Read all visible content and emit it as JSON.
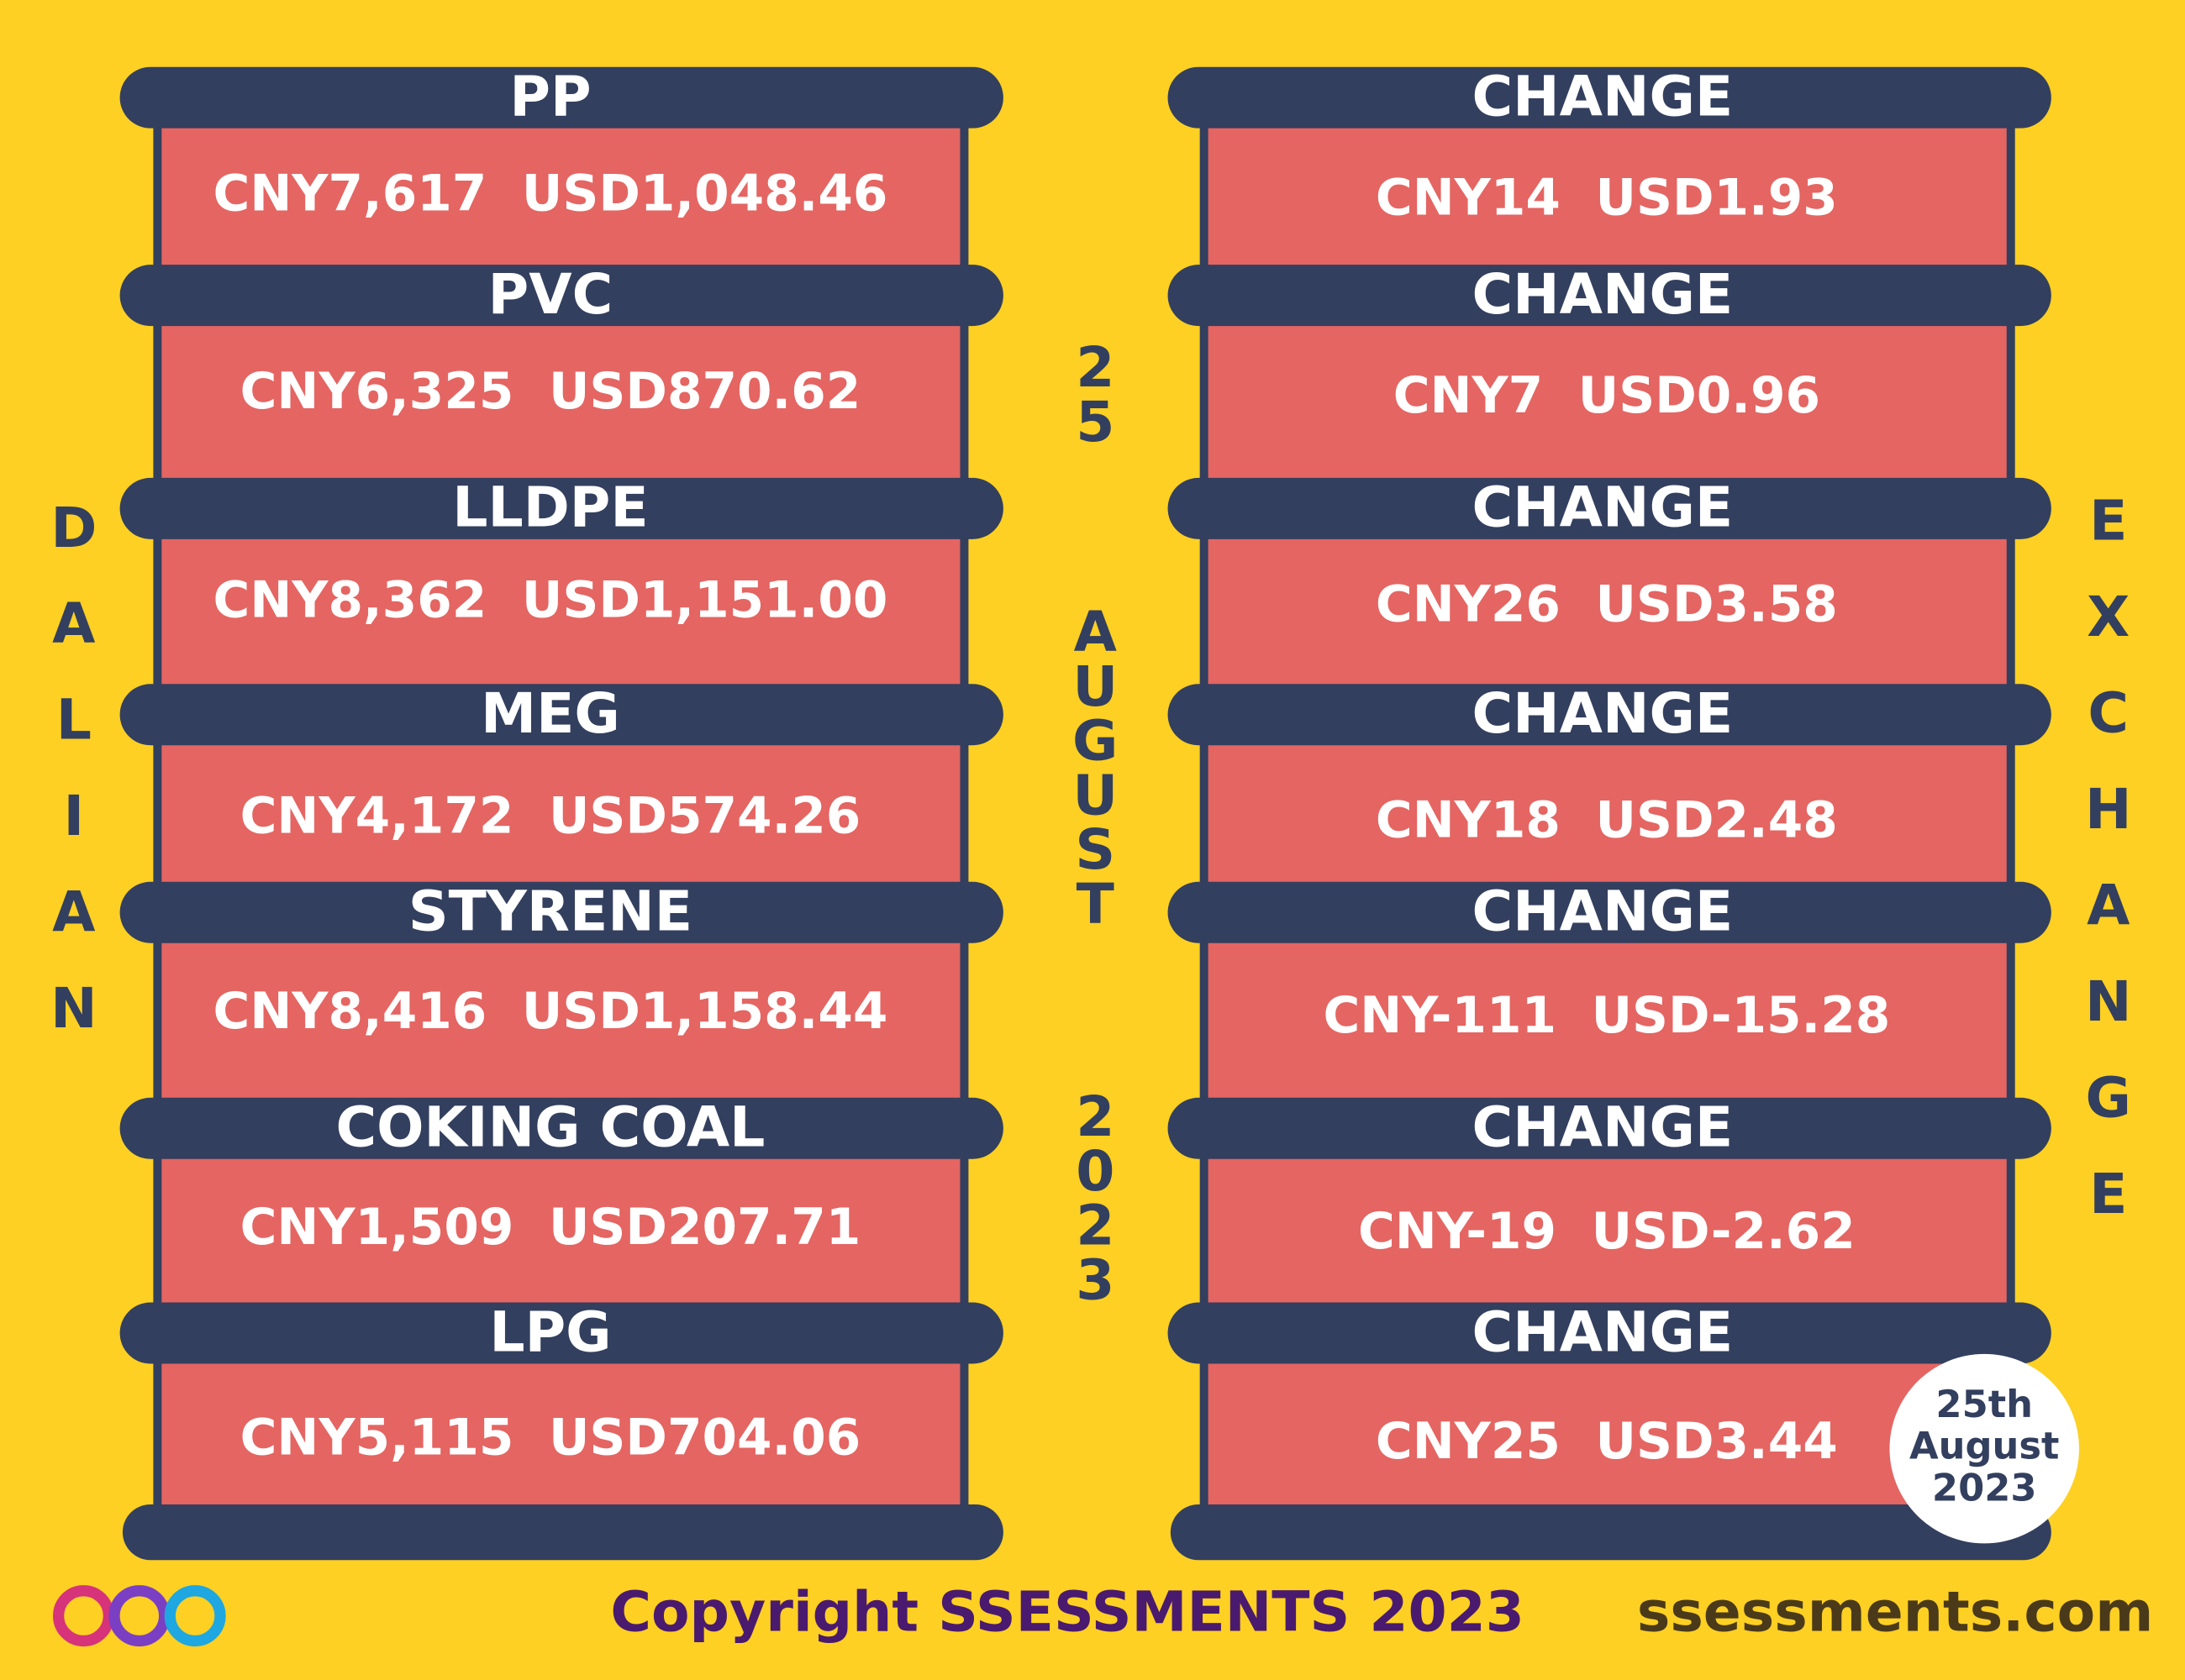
{
  "side_labels": {
    "left": "DALIAN",
    "right": "EXCHANGE"
  },
  "date_center": {
    "day": "25",
    "month": "AUGUST",
    "year": "2023"
  },
  "products": [
    {
      "name": "PP",
      "price": "CNY7,617  USD1,048.46",
      "change_label": "CHANGE",
      "change": "CNY14  USD1.93"
    },
    {
      "name": "PVC",
      "price": "CNY6,325  USD870.62",
      "change_label": "CHANGE",
      "change": "CNY7  USD0.96"
    },
    {
      "name": "LLDPE",
      "price": "CNY8,362  USD1,151.00",
      "change_label": "CHANGE",
      "change": "CNY26  USD3.58"
    },
    {
      "name": "MEG",
      "price": "CNY4,172  USD574.26",
      "change_label": "CHANGE",
      "change": "CNY18  USD2.48"
    },
    {
      "name": "STYRENE",
      "price": "CNY8,416  USD1,158.44",
      "change_label": "CHANGE",
      "change": "CNY-111  USD-15.28"
    },
    {
      "name": "COKING COAL",
      "price": "CNY1,509  USD207.71",
      "change_label": "CHANGE",
      "change": "CNY-19  USD-2.62"
    },
    {
      "name": "LPG",
      "price": "CNY5,115  USD704.06",
      "change_label": "CHANGE",
      "change": "CNY25  USD3.44"
    }
  ],
  "badge": {
    "day": "25th",
    "month": "August",
    "year": "2023"
  },
  "footer": {
    "copyright": "Copyright SSESSMENTS 2023",
    "website": "ssessments.com"
  }
}
